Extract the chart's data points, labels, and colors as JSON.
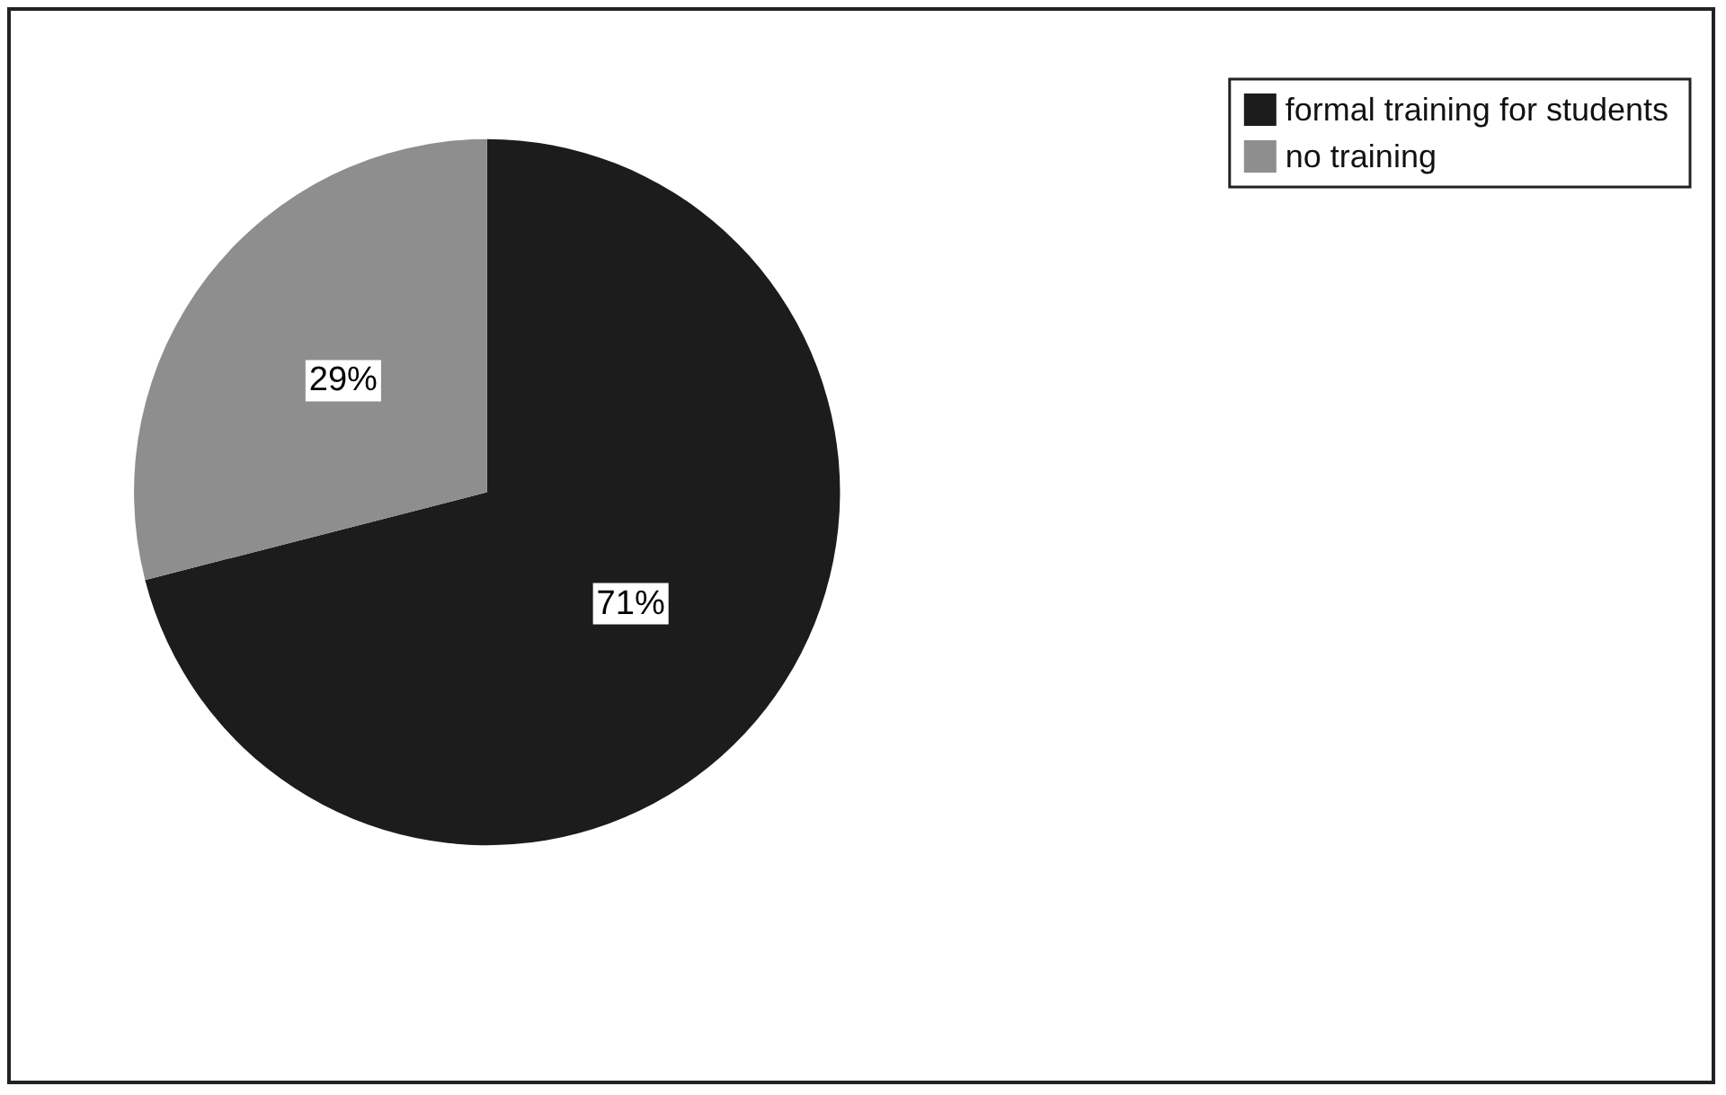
{
  "chart_data": {
    "type": "pie",
    "categories": [
      "formal training for students",
      "no training"
    ],
    "values": [
      71,
      29
    ],
    "colors": [
      "#1c1c1c",
      "#8e8e8e"
    ],
    "value_labels": [
      "71%",
      "29%"
    ],
    "legend": "top right"
  }
}
